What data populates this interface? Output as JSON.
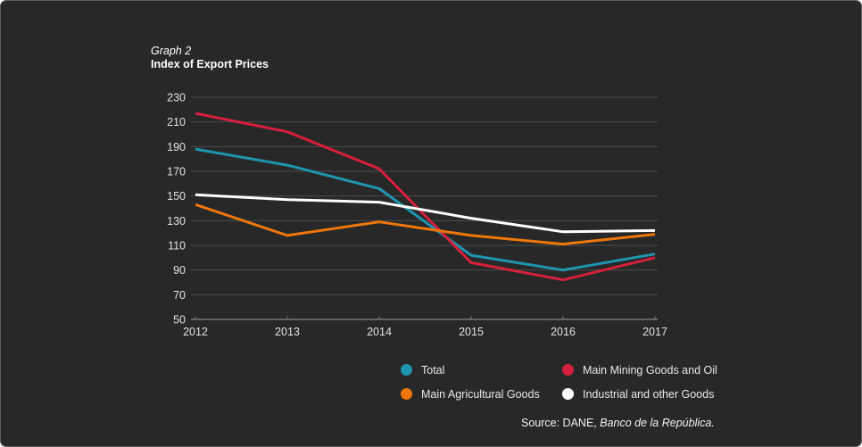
{
  "title": {
    "graph_number": "Graph 2",
    "graph_name": "Index of Export Prices"
  },
  "chart_data": {
    "type": "line",
    "categories": [
      "2012",
      "2013",
      "2014",
      "2015",
      "2016",
      "2017"
    ],
    "series": [
      {
        "name": "Total",
        "color": "#1e95af",
        "values": [
          188,
          175,
          156,
          102,
          90,
          103
        ]
      },
      {
        "name": "Main Mining Goods and Oil",
        "color": "#d51f3c",
        "values": [
          217,
          202,
          172,
          96,
          82,
          100
        ]
      },
      {
        "name": "Main Agricultural Goods",
        "color": "#ee760b",
        "values": [
          143,
          118,
          129,
          118,
          111,
          119
        ]
      },
      {
        "name": "Industrial and other Goods",
        "color": "#ffffff",
        "values": [
          151,
          147,
          145,
          132,
          121,
          122
        ]
      }
    ],
    "ylim": [
      50,
      230
    ],
    "ytick_step": 20,
    "yticks": [
      50,
      70,
      90,
      110,
      130,
      150,
      170,
      190,
      210,
      230
    ],
    "grid": true,
    "legend_position": "bottom",
    "background_color": "#282828",
    "gridline_color": "#4b4b4b",
    "axis_color": "#9b9b9b",
    "tick_label_color": "#e3e3e3"
  },
  "legend_order": [
    0,
    1,
    2,
    3
  ],
  "source": {
    "prefix": "Source: DANE, ",
    "italic": "Banco de la República."
  }
}
